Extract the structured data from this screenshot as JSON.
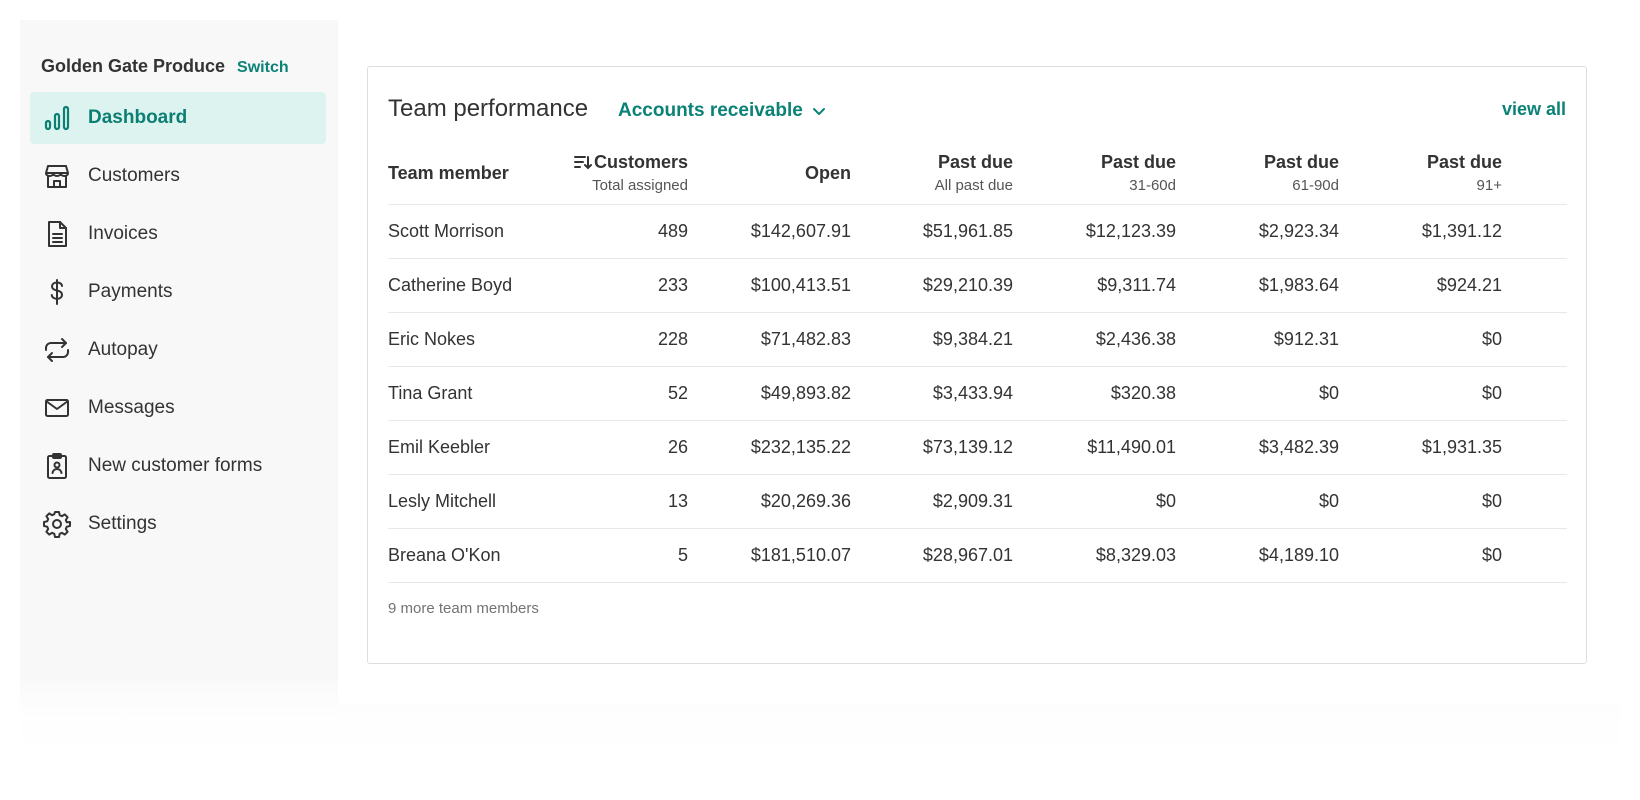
{
  "sidebar": {
    "org_name": "Golden Gate Produce",
    "switch_label": "Switch",
    "items": [
      {
        "label": "Dashboard",
        "icon": "bar-chart-icon",
        "active": true
      },
      {
        "label": "Customers",
        "icon": "storefront-icon"
      },
      {
        "label": "Invoices",
        "icon": "document-icon"
      },
      {
        "label": "Payments",
        "icon": "dollar-icon"
      },
      {
        "label": "Autopay",
        "icon": "repeat-icon"
      },
      {
        "label": "Messages",
        "icon": "mail-icon"
      },
      {
        "label": "New customer forms",
        "icon": "clipboard-icon"
      },
      {
        "label": "Settings",
        "icon": "gear-icon"
      }
    ]
  },
  "card": {
    "title": "Team performance",
    "report_select": "Accounts receivable",
    "view_all": "view all",
    "columns": [
      {
        "main": "Team member",
        "sub": ""
      },
      {
        "main": "Customers",
        "sub": "Total assigned"
      },
      {
        "main": "Open",
        "sub": ""
      },
      {
        "main": "Past due",
        "sub": "All past due"
      },
      {
        "main": "Past due",
        "sub": "31-60d"
      },
      {
        "main": "Past due",
        "sub": "61-90d"
      },
      {
        "main": "Past due",
        "sub": "91+"
      }
    ],
    "rows": [
      {
        "name": "Scott Morrison",
        "customers": "489",
        "open": "$142,607.91",
        "pd_all": "$51,961.85",
        "pd_31_60": "$12,123.39",
        "pd_61_90": "$2,923.34",
        "pd_91": "$1,391.12"
      },
      {
        "name": "Catherine Boyd",
        "customers": "233",
        "open": "$100,413.51",
        "pd_all": "$29,210.39",
        "pd_31_60": "$9,311.74",
        "pd_61_90": "$1,983.64",
        "pd_91": "$924.21"
      },
      {
        "name": "Eric Nokes",
        "customers": "228",
        "open": "$71,482.83",
        "pd_all": "$9,384.21",
        "pd_31_60": "$2,436.38",
        "pd_61_90": "$912.31",
        "pd_91": "$0"
      },
      {
        "name": "Tina Grant",
        "customers": "52",
        "open": "$49,893.82",
        "pd_all": "$3,433.94",
        "pd_31_60": "$320.38",
        "pd_61_90": "$0",
        "pd_91": "$0"
      },
      {
        "name": "Emil Keebler",
        "customers": "26",
        "open": "$232,135.22",
        "pd_all": "$73,139.12",
        "pd_31_60": "$11,490.01",
        "pd_61_90": "$3,482.39",
        "pd_91": "$1,931.35"
      },
      {
        "name": "Lesly Mitchell",
        "customers": "13",
        "open": "$20,269.36",
        "pd_all": "$2,909.31",
        "pd_31_60": "$0",
        "pd_61_90": "$0",
        "pd_91": "$0"
      },
      {
        "name": "Breana O'Kon",
        "customers": "5",
        "open": "$181,510.07",
        "pd_all": "$28,967.01",
        "pd_31_60": "$8,329.03",
        "pd_61_90": "$4,189.10",
        "pd_91": "$0"
      }
    ],
    "more_text": "9 more team members"
  },
  "colors": {
    "accent": "#0b8276",
    "active_bg": "#dcf3ef",
    "past_due": "#a83438",
    "zero": "#757575"
  }
}
